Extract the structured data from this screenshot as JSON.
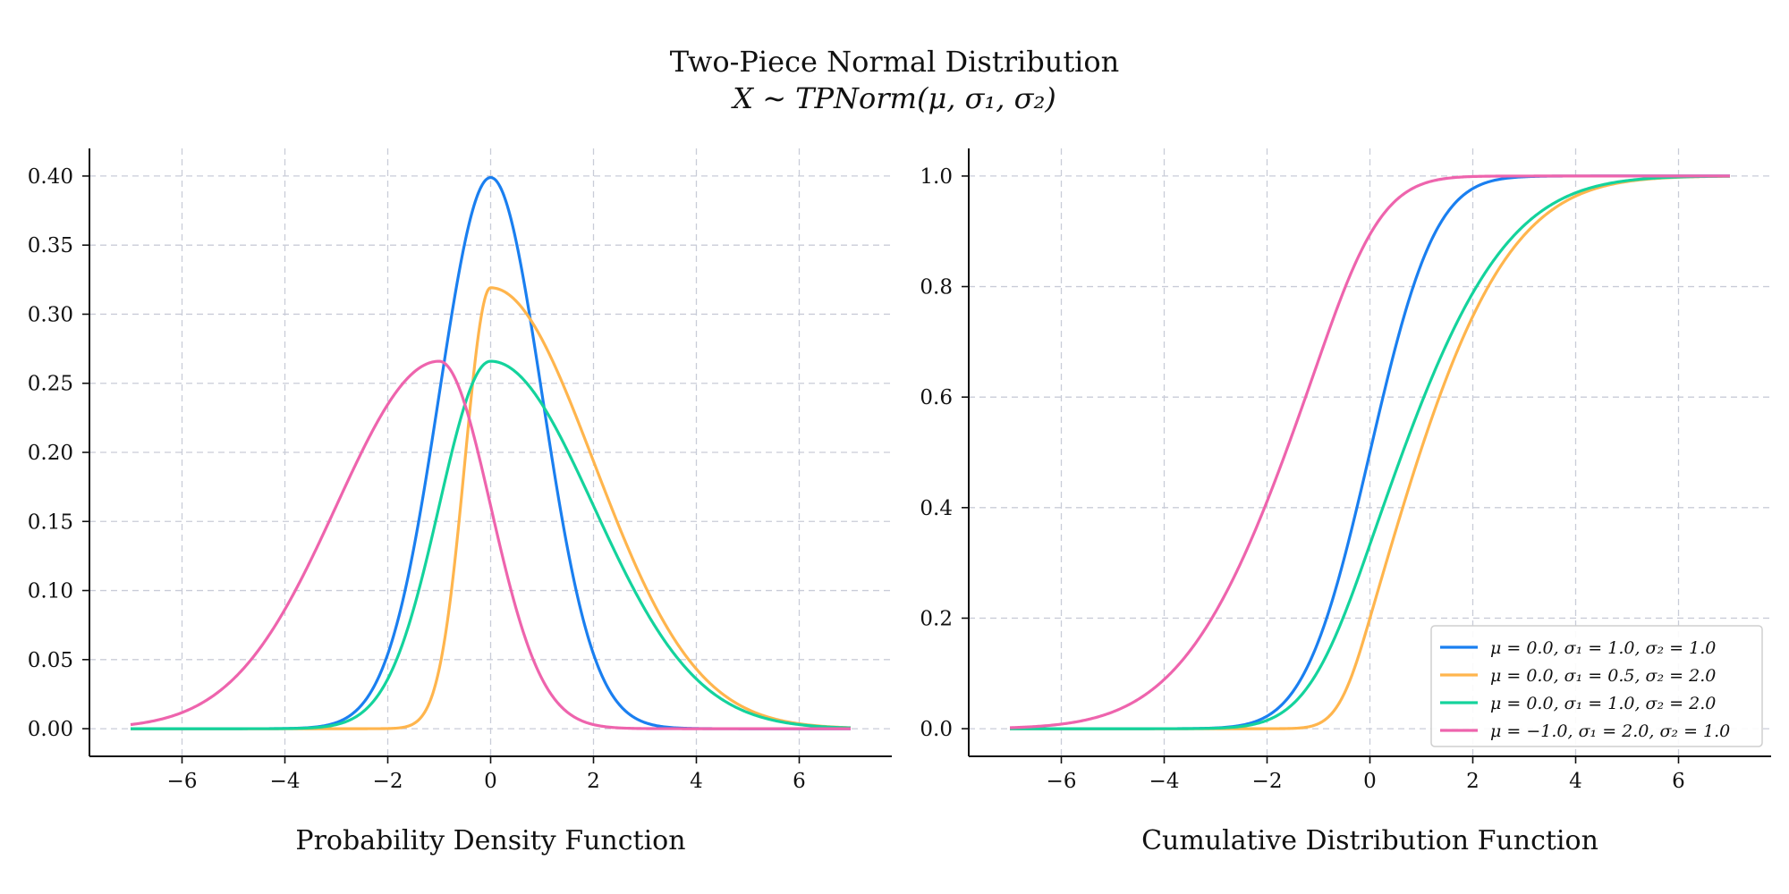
{
  "figure": {
    "title": "Two-Piece Normal Distribution",
    "subtitle": "X ∼ TPNorm(μ, σ₁, σ₂)"
  },
  "colors": {
    "series": [
      "#1a7ff0",
      "#ffb54d",
      "#14d39c",
      "#ee64ad"
    ],
    "grid": "#c9ccd8",
    "axis": "#111111"
  },
  "chart_data": [
    {
      "type": "line",
      "title": "",
      "xlabel": "Probability Density Function",
      "ylabel": "",
      "xlim": [
        -7.8,
        7.8
      ],
      "ylim": [
        -0.02,
        0.42
      ],
      "xticks": [
        -6,
        -4,
        -2,
        0,
        2,
        4,
        6
      ],
      "xtick_labels": [
        "−6",
        "−4",
        "−2",
        "0",
        "2",
        "4",
        "6"
      ],
      "yticks": [
        0.0,
        0.05,
        0.1,
        0.15,
        0.2,
        0.25,
        0.3,
        0.35,
        0.4
      ],
      "ytick_labels": [
        "0.00",
        "0.05",
        "0.10",
        "0.15",
        "0.20",
        "0.25",
        "0.30",
        "0.35",
        "0.40"
      ],
      "grid": true,
      "legend": "none",
      "x_range": [
        -7,
        7
      ],
      "series": [
        {
          "mu": 0.0,
          "sigma1": 1.0,
          "sigma2": 1.0
        },
        {
          "mu": 0.0,
          "sigma1": 0.5,
          "sigma2": 2.0
        },
        {
          "mu": 0.0,
          "sigma1": 1.0,
          "sigma2": 2.0
        },
        {
          "mu": -1.0,
          "sigma1": 2.0,
          "sigma2": 1.0
        }
      ]
    },
    {
      "type": "line",
      "title": "",
      "xlabel": "Cumulative Distribution Function",
      "ylabel": "",
      "xlim": [
        -7.8,
        7.8
      ],
      "ylim": [
        -0.05,
        1.05
      ],
      "xticks": [
        -6,
        -4,
        -2,
        0,
        2,
        4,
        6
      ],
      "xtick_labels": [
        "−6",
        "−4",
        "−2",
        "0",
        "2",
        "4",
        "6"
      ],
      "yticks": [
        0.0,
        0.2,
        0.4,
        0.6,
        0.8,
        1.0
      ],
      "ytick_labels": [
        "0.0",
        "0.2",
        "0.4",
        "0.6",
        "0.8",
        "1.0"
      ],
      "grid": true,
      "legend": "lower-right",
      "x_range": [
        -7,
        7
      ],
      "series": [
        {
          "name": "μ = 0.0, σ₁ = 1.0, σ₂ = 1.0",
          "mu": 0.0,
          "sigma1": 1.0,
          "sigma2": 1.0
        },
        {
          "name": "μ = 0.0, σ₁ = 0.5, σ₂ = 2.0",
          "mu": 0.0,
          "sigma1": 0.5,
          "sigma2": 2.0
        },
        {
          "name": "μ = 0.0, σ₁ = 1.0, σ₂ = 2.0",
          "mu": 0.0,
          "sigma1": 1.0,
          "sigma2": 2.0
        },
        {
          "name": "μ = −1.0, σ₁ = 2.0, σ₂ = 1.0",
          "mu": -1.0,
          "sigma1": 2.0,
          "sigma2": 1.0
        }
      ]
    }
  ]
}
